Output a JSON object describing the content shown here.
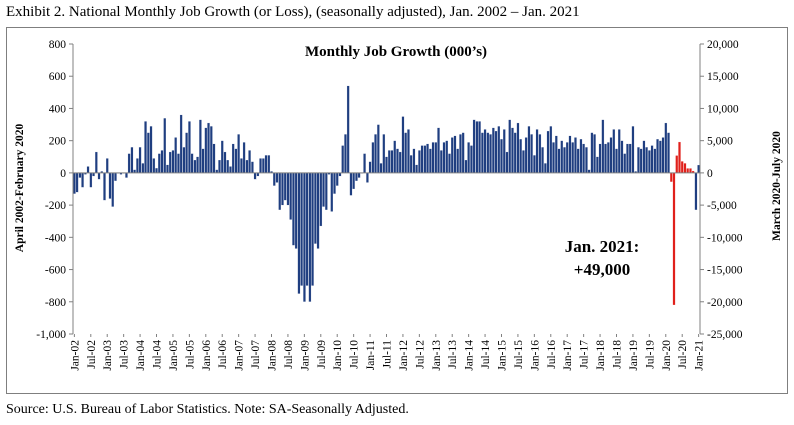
{
  "exhibit_title": "Exhibit 2. National Monthly Job Growth (or Loss), (seasonally adjusted), Jan. 2002 – Jan. 2021",
  "source_note": "Source: U.S. Bureau of Labor Statistics. Note: SA-Seasonally Adjusted.",
  "annotation": {
    "line1": "Jan. 2021:",
    "line2": "+49,000"
  },
  "colors": {
    "pre_covid_bar": "#1f3e80",
    "covid_bar": "#e0201b",
    "bar_edge": "#ffffff",
    "axis": "#808080",
    "frame": "#7f7f7f"
  },
  "chart_data": {
    "type": "bar",
    "title": "Monthly Job Growth (000’s)",
    "left_axis": {
      "label": "April 2002-February 2020",
      "ylim": [
        -1000,
        800
      ],
      "ticks": [
        800,
        600,
        400,
        200,
        0,
        -200,
        -400,
        -600,
        -800,
        -1000
      ],
      "tick_labels": [
        "800",
        "600",
        "400",
        "200",
        "0",
        "-200",
        "-400",
        "-600",
        "-800",
        "-1,000"
      ]
    },
    "right_axis": {
      "label": "March 2020-July 2020",
      "ylim": [
        -25000,
        20000
      ],
      "ticks": [
        20000,
        15000,
        10000,
        5000,
        0,
        -5000,
        -10000,
        -15000,
        -20000,
        -25000
      ],
      "tick_labels": [
        "20,000",
        "15,000",
        "10,000",
        "5,000",
        "0",
        "-5,000",
        "-10,000",
        "-15,000",
        "-20,000",
        "-25,000"
      ]
    },
    "x_tick_labels": [
      "Jan-02",
      "Jul-02",
      "Jan-03",
      "Jul-03",
      "Jan-04",
      "Jul-04",
      "Jan-05",
      "Jul-05",
      "Jan-06",
      "Jul-06",
      "Jan-07",
      "Jul-07",
      "Jan-08",
      "Jul-08",
      "Jan-09",
      "Jul-09",
      "Jan-10",
      "Jul-10",
      "Jan-11",
      "Jul-11",
      "Jan-12",
      "Jul-12",
      "Jan-13",
      "Jul-13",
      "Jan-14",
      "Jul-14",
      "Jan-15",
      "Jul-15",
      "Jan-16",
      "Jul-16",
      "Jan-17",
      "Jul-17",
      "Jan-18",
      "Jul-18",
      "Jan-19",
      "Jul-19",
      "Jan-20",
      "Jul-20",
      "Jan-21"
    ],
    "months_first": "Jan-02",
    "series": [
      {
        "axis": "left",
        "color": "#1f3e80",
        "values": [
          -130,
          -120,
          -30,
          -90,
          -10,
          40,
          -90,
          -20,
          130,
          -40,
          10,
          -170,
          90,
          -160,
          -210,
          -50,
          0,
          -10,
          0,
          -30,
          120,
          160,
          20,
          90,
          160,
          60,
          320,
          250,
          290,
          90,
          30,
          120,
          140,
          340,
          50,
          130,
          140,
          220,
          120,
          360,
          160,
          250,
          320,
          120,
          80,
          100,
          330,
          150,
          280,
          310,
          290,
          180,
          20,
          80,
          200,
          130,
          80,
          40,
          180,
          150,
          240,
          90,
          190,
          80,
          140,
          70,
          -40,
          -20,
          90,
          90,
          110,
          110,
          10,
          -80,
          -60,
          -230,
          -200,
          -170,
          -200,
          -290,
          -450,
          -470,
          -750,
          -700,
          -800,
          -700,
          -800,
          -700,
          -440,
          -470,
          -330,
          -210,
          -230,
          -10,
          -240,
          -130,
          -80,
          -20,
          170,
          240,
          540,
          -140,
          -100,
          -50,
          -30,
          0,
          120,
          -60,
          70,
          190,
          240,
          300,
          60,
          240,
          100,
          140,
          140,
          200,
          150,
          130,
          350,
          250,
          270,
          110,
          150,
          50,
          140,
          170,
          170,
          180,
          150,
          190,
          190,
          280,
          140,
          190,
          200,
          120,
          220,
          230,
          150,
          240,
          250,
          80,
          190,
          170,
          330,
          320,
          320,
          250,
          270,
          250,
          240,
          280,
          260,
          290,
          210,
          270,
          130,
          330,
          280,
          250,
          310,
          210,
          140,
          220,
          290,
          240,
          110,
          270,
          240,
          160,
          60,
          260,
          290,
          190,
          230,
          150,
          200,
          160,
          190,
          230,
          190,
          220,
          150,
          210,
          180,
          160,
          20,
          250,
          240,
          100,
          180,
          330,
          180,
          190,
          220,
          270,
          150,
          270,
          200,
          120,
          180,
          180,
          290,
          10,
          160,
          150,
          200,
          160,
          140,
          170,
          150,
          210,
          200,
          220,
          310,
          250,
          null,
          null,
          null,
          null,
          null,
          null,
          null,
          null,
          null,
          -230,
          49
        ]
      },
      {
        "axis": "right",
        "color": "#e0201b",
        "name": "",
        "months": [
          "Mar-20",
          "Apr-20",
          "May-20",
          "Jun-20",
          "Jul-20",
          "Aug-20",
          "Sep-20",
          "Oct-20",
          "Nov-20"
        ],
        "values": [
          -1400,
          -20500,
          2700,
          4800,
          1800,
          1500,
          700,
          700,
          300
        ]
      }
    ]
  }
}
